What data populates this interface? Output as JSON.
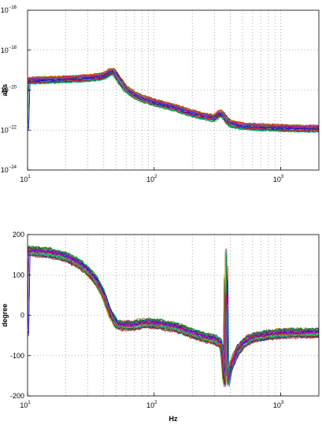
{
  "chart_data": [
    {
      "type": "line",
      "xscale": "log",
      "yscale": "log",
      "xlim": [
        10,
        2000
      ],
      "ylim": [
        1e-24,
        1e-16
      ],
      "ylabel": "abs",
      "xlabel": "",
      "grid": true,
      "x_ticks": [
        {
          "base": "10",
          "exp": "1"
        },
        {
          "base": "10",
          "exp": "2"
        },
        {
          "base": "10",
          "exp": "3"
        }
      ],
      "y_ticks": [
        {
          "base": "10",
          "exp": "−24"
        },
        {
          "base": "10",
          "exp": "−22"
        },
        {
          "base": "10",
          "exp": "−20"
        },
        {
          "base": "10",
          "exp": "−18"
        },
        {
          "base": "10",
          "exp": "−16"
        }
      ],
      "series_count": 40,
      "representative_curve": {
        "x": [
          10,
          20,
          30,
          40,
          45,
          48,
          50,
          55,
          60,
          70,
          80,
          100,
          150,
          200,
          250,
          300,
          330,
          350,
          380,
          400,
          450,
          500,
          700,
          1000,
          1500,
          2000
        ],
        "y": [
          3e-20,
          3.5e-20,
          4e-20,
          5e-20,
          8e-20,
          9e-20,
          6e-20,
          2.5e-20,
          1.2e-20,
          6e-21,
          4e-21,
          2.5e-21,
          1.3e-21,
          7e-22,
          5e-22,
          4e-22,
          7e-22,
          6e-22,
          3e-22,
          2.2e-22,
          1.8e-22,
          1.6e-22,
          1.4e-22,
          1.3e-22,
          1.2e-22,
          1.2e-22
        ]
      }
    },
    {
      "type": "line",
      "xscale": "log",
      "yscale": "linear",
      "xlim": [
        10,
        2000
      ],
      "ylim": [
        -200,
        200
      ],
      "ylabel": "degree",
      "xlabel": "Hz",
      "grid": true,
      "x_ticks": [
        {
          "base": "10",
          "exp": "1"
        },
        {
          "base": "10",
          "exp": "2"
        },
        {
          "base": "10",
          "exp": "3"
        }
      ],
      "y_ticks": [
        "-200",
        "-100",
        "0",
        "100",
        "200"
      ],
      "series_count": 40,
      "representative_curve": {
        "x": [
          10,
          15,
          20,
          25,
          30,
          35,
          40,
          45,
          50,
          55,
          60,
          70,
          80,
          100,
          150,
          200,
          250,
          300,
          340,
          360,
          370,
          380,
          400,
          450,
          500,
          600,
          800,
          1000,
          1500,
          2000
        ],
        "y": [
          160,
          155,
          145,
          130,
          110,
          85,
          50,
          5,
          -20,
          -25,
          -25,
          -25,
          -20,
          -20,
          -30,
          -45,
          -55,
          -60,
          -70,
          -170,
          170,
          -170,
          -130,
          -90,
          -70,
          -55,
          -48,
          -45,
          -44,
          -43
        ]
      }
    }
  ],
  "colors": [
    "#0000ff",
    "#008000",
    "#ff0000",
    "#00bfbf",
    "#bf00bf",
    "#bfbf00",
    "#404040"
  ]
}
